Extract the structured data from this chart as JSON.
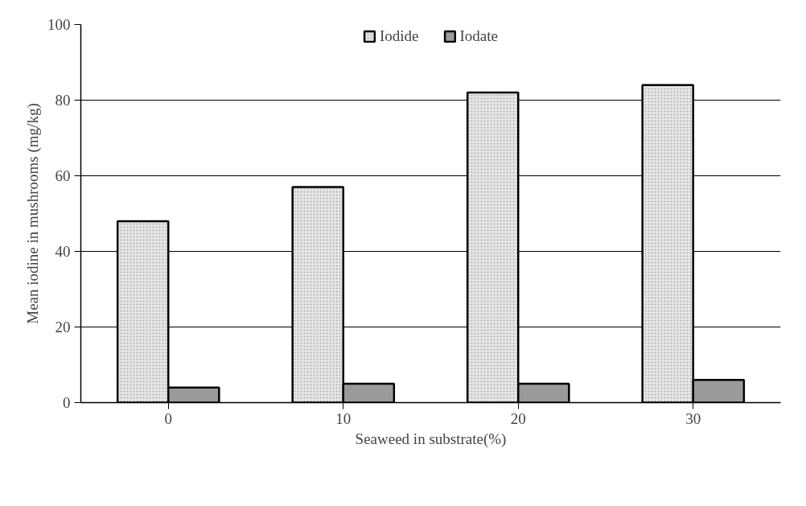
{
  "chart_data": {
    "type": "bar",
    "xlabel": "Seaweed in substrate(%)",
    "ylabel": "Mean iodine in mushrooms (mg/kg)",
    "categories": [
      "0",
      "10",
      "20",
      "30"
    ],
    "series": [
      {
        "name": "Iodide",
        "color": "#e6e6e6",
        "values": [
          48,
          57,
          82,
          84
        ]
      },
      {
        "name": "Iodate",
        "color": "#9a9a9a",
        "values": [
          4,
          5,
          5,
          6
        ]
      }
    ],
    "ylim": [
      0,
      100
    ],
    "yticks": [
      0,
      20,
      40,
      60,
      80,
      100
    ],
    "grid": "y",
    "legend": "top"
  }
}
